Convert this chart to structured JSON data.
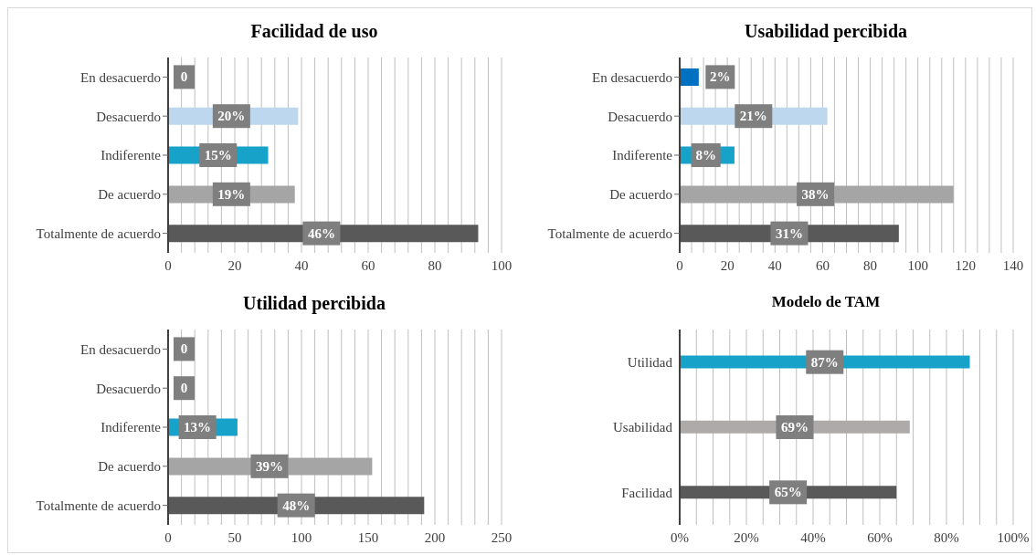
{
  "chart_data": [
    {
      "type": "bar",
      "orientation": "horizontal",
      "title": "Facilidad de uso",
      "categories": [
        "En desacuerdo",
        "Desacuerdo",
        "Indiferente",
        "De acuerdo",
        "Totalmente de acuerdo"
      ],
      "values": [
        0,
        39,
        30,
        38,
        93
      ],
      "colors": [
        "#0070c0",
        "#bdd7ee",
        "#17a2c9",
        "#a5a5a5",
        "#595959"
      ],
      "annotations": [
        {
          "text": "0",
          "x": 0,
          "y": "En desacuerdo"
        },
        {
          "text": "20%",
          "x": 19,
          "y": "Desacuerdo"
        },
        {
          "text": "15%",
          "x": 15,
          "y": "Indiferente"
        },
        {
          "text": "19%",
          "x": 19,
          "y": "De acuerdo"
        },
        {
          "text": "46%",
          "x": 46,
          "y": "Totalmente de acuerdo"
        }
      ],
      "xlim": [
        0,
        100
      ],
      "xticks": [
        0,
        {
          "value": 4,
          "label": null
        },
        {
          "value": 8,
          "label": null
        },
        {
          "value": 12,
          "label": null
        },
        {
          "value": 16,
          "label": null
        },
        20,
        {
          "value": 24,
          "label": null
        },
        {
          "value": 28,
          "label": null
        },
        {
          "value": 32,
          "label": null
        },
        {
          "value": 36,
          "label": null
        },
        40,
        {
          "value": 44,
          "label": null
        },
        {
          "value": 48,
          "label": null
        },
        {
          "value": 52,
          "label": null
        },
        {
          "value": 56,
          "label": null
        },
        60,
        {
          "value": 64,
          "label": null
        },
        {
          "value": 68,
          "label": null
        },
        {
          "value": 72,
          "label": null
        },
        {
          "value": 76,
          "label": null
        },
        80,
        {
          "value": 84,
          "label": null
        },
        {
          "value": 88,
          "label": null
        },
        {
          "value": 92,
          "label": null
        },
        {
          "value": 96,
          "label": null
        },
        100
      ],
      "grid": "x"
    },
    {
      "type": "bar",
      "orientation": "horizontal",
      "title": "Usabilidad percibida",
      "categories": [
        "En desacuerdo",
        "Desacuerdo",
        "Indiferente",
        "De acuerdo",
        "Totalmente de acuerdo"
      ],
      "values": [
        8,
        62,
        23,
        115,
        92
      ],
      "colors": [
        "#0070c0",
        "#bdd7ee",
        "#17a2c9",
        "#a5a5a5",
        "#595959"
      ],
      "annotations": [
        {
          "text": "2%",
          "x": 17,
          "y": "En desacuerdo"
        },
        {
          "text": "21%",
          "x": 31,
          "y": "Desacuerdo"
        },
        {
          "text": "8%",
          "x": 11,
          "y": "Indiferente"
        },
        {
          "text": "38%",
          "x": 57,
          "y": "De acuerdo"
        },
        {
          "text": "31%",
          "x": 46,
          "y": "Totalmente de acuerdo"
        }
      ],
      "xlim": [
        0,
        140
      ],
      "xticks": [
        0,
        {
          "value": 5,
          "label": null
        },
        {
          "value": 10,
          "label": null
        },
        {
          "value": 15,
          "label": null
        },
        20,
        {
          "value": 25,
          "label": null
        },
        {
          "value": 30,
          "label": null
        },
        {
          "value": 35,
          "label": null
        },
        40,
        {
          "value": 45,
          "label": null
        },
        {
          "value": 50,
          "label": null
        },
        {
          "value": 55,
          "label": null
        },
        60,
        {
          "value": 65,
          "label": null
        },
        {
          "value": 70,
          "label": null
        },
        {
          "value": 75,
          "label": null
        },
        80,
        {
          "value": 85,
          "label": null
        },
        {
          "value": 90,
          "label": null
        },
        {
          "value": 95,
          "label": null
        },
        100,
        {
          "value": 105,
          "label": null
        },
        {
          "value": 110,
          "label": null
        },
        {
          "value": 115,
          "label": null
        },
        120,
        {
          "value": 125,
          "label": null
        },
        {
          "value": 130,
          "label": null
        },
        {
          "value": 135,
          "label": null
        },
        140
      ],
      "grid": "x"
    },
    {
      "type": "bar",
      "orientation": "horizontal",
      "title": "Utilidad percibida",
      "categories": [
        "En desacuerdo",
        "Desacuerdo",
        "Indiferente",
        "De acuerdo",
        "Totalmente de acuerdo"
      ],
      "values": [
        0,
        0,
        52,
        153,
        192
      ],
      "colors": [
        "#0070c0",
        "#bdd7ee",
        "#17a2c9",
        "#a5a5a5",
        "#595959"
      ],
      "annotations": [
        {
          "text": "0",
          "x": 0,
          "y": "En desacuerdo"
        },
        {
          "text": "0",
          "x": 0,
          "y": "Desacuerdo"
        },
        {
          "text": "13%",
          "x": 22,
          "y": "Indiferente"
        },
        {
          "text": "39%",
          "x": 76,
          "y": "De acuerdo"
        },
        {
          "text": "48%",
          "x": 96,
          "y": "Totalmente de acuerdo"
        }
      ],
      "xlim": [
        0,
        250
      ],
      "xticks": [
        0,
        {
          "value": 10,
          "label": null
        },
        {
          "value": 20,
          "label": null
        },
        {
          "value": 30,
          "label": null
        },
        {
          "value": 40,
          "label": null
        },
        50,
        {
          "value": 60,
          "label": null
        },
        {
          "value": 70,
          "label": null
        },
        {
          "value": 80,
          "label": null
        },
        {
          "value": 90,
          "label": null
        },
        100,
        {
          "value": 110,
          "label": null
        },
        {
          "value": 120,
          "label": null
        },
        {
          "value": 130,
          "label": null
        },
        {
          "value": 140,
          "label": null
        },
        150,
        {
          "value": 160,
          "label": null
        },
        {
          "value": 170,
          "label": null
        },
        {
          "value": 180,
          "label": null
        },
        {
          "value": 190,
          "label": null
        },
        200,
        {
          "value": 210,
          "label": null
        },
        {
          "value": 220,
          "label": null
        },
        {
          "value": 230,
          "label": null
        },
        {
          "value": 240,
          "label": null
        },
        250
      ],
      "grid": "x"
    },
    {
      "type": "bar",
      "orientation": "horizontal",
      "title": "Modelo de TAM",
      "categories": [
        "Utilidad",
        "Usabilidad",
        "Facilidad"
      ],
      "values": [
        87,
        69,
        65
      ],
      "colors": [
        "#17a2c9",
        "#aeaaaa",
        "#595959"
      ],
      "value_labels": [
        "87%",
        "69%",
        "65%"
      ],
      "xlim": [
        0,
        100
      ],
      "xticks": [
        {
          "value": 0,
          "label": "0%"
        },
        {
          "value": 5,
          "label": null
        },
        {
          "value": 10,
          "label": null
        },
        {
          "value": 15,
          "label": null
        },
        {
          "value": 20,
          "label": "20%"
        },
        {
          "value": 25,
          "label": null
        },
        {
          "value": 30,
          "label": null
        },
        {
          "value": 35,
          "label": null
        },
        {
          "value": 40,
          "label": "40%"
        },
        {
          "value": 45,
          "label": null
        },
        {
          "value": 50,
          "label": null
        },
        {
          "value": 55,
          "label": null
        },
        {
          "value": 60,
          "label": "60%"
        },
        {
          "value": 65,
          "label": null
        },
        {
          "value": 70,
          "label": null
        },
        {
          "value": 75,
          "label": null
        },
        {
          "value": 80,
          "label": "80%"
        },
        {
          "value": 85,
          "label": null
        },
        {
          "value": 90,
          "label": null
        },
        {
          "value": 95,
          "label": null
        },
        {
          "value": 100,
          "label": "100%"
        }
      ],
      "grid": "x"
    }
  ]
}
